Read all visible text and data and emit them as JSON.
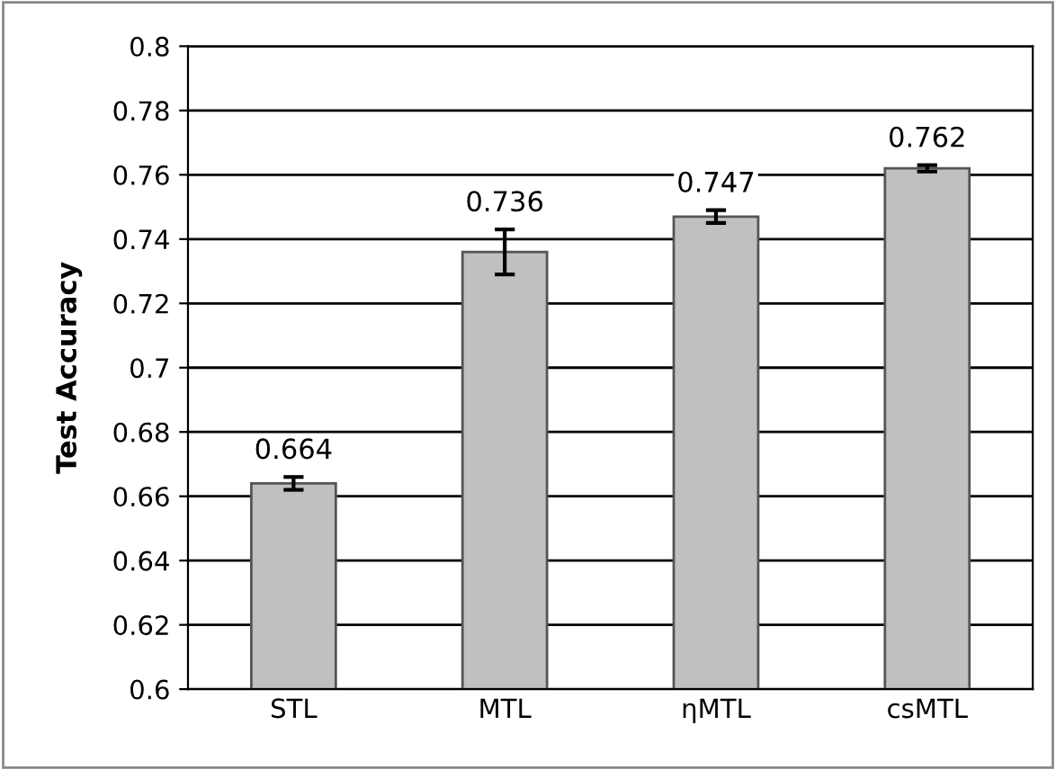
{
  "chart_data": {
    "type": "bar",
    "ylabel": "Test Accuracy",
    "categories": [
      "STL",
      "MTL",
      "ηMTL",
      "csMTL"
    ],
    "values": [
      0.664,
      0.736,
      0.747,
      0.762
    ],
    "errors": [
      0.002,
      0.007,
      0.002,
      0.001
    ],
    "color": "#c0c0c0",
    "ylim": [
      0.6,
      0.8
    ],
    "yticks": [
      0.6,
      0.62,
      0.64,
      0.66,
      0.68,
      0.7,
      0.72,
      0.74,
      0.76,
      0.78,
      0.8
    ],
    "grid": "y",
    "data_labels": true
  }
}
